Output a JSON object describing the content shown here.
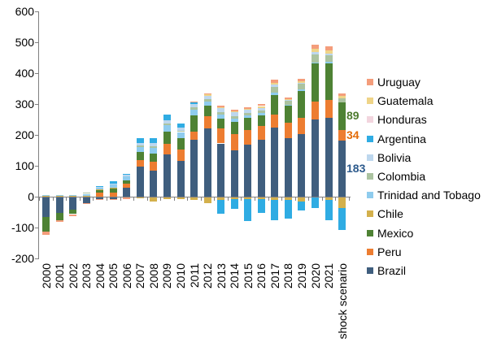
{
  "chart_data": {
    "type": "bar",
    "stacked": true,
    "title": "",
    "xlabel": "",
    "ylabel": "",
    "grid": false,
    "legend_position": "right",
    "ylim": [
      -200,
      600
    ],
    "yticks": [
      600,
      500,
      400,
      300,
      200,
      100,
      0,
      -100,
      -200
    ],
    "categories": [
      "2000",
      "2001",
      "2002",
      "2003",
      "2004",
      "2005",
      "2006",
      "2007",
      "2008",
      "2009",
      "2010",
      "2011",
      "2012",
      "2013",
      "2014",
      "2015",
      "2016",
      "2017",
      "2018",
      "2019",
      "2020",
      "2021",
      "shock scenario"
    ],
    "series": [
      {
        "name": "Brazil",
        "color": "#3F5E7E",
        "values": [
          -63,
          -50,
          -40,
          -18,
          -6,
          -5,
          30,
          97,
          85,
          137,
          115,
          185,
          220,
          172,
          150,
          168,
          185,
          224,
          189,
          203,
          251,
          255,
          183
        ]
      },
      {
        "name": "Peru",
        "color": "#ED7D31",
        "values": [
          0,
          0,
          0,
          0,
          13,
          15,
          12,
          22,
          28,
          35,
          37,
          26,
          40,
          48,
          53,
          48,
          44,
          44,
          50,
          52,
          57,
          57,
          34
        ]
      },
      {
        "name": "Mexico",
        "color": "#4E8234",
        "values": [
          -47,
          -24,
          -14,
          0,
          9,
          12,
          10,
          25,
          27,
          39,
          39,
          53,
          35,
          35,
          39,
          39,
          35,
          62,
          55,
          88,
          123,
          119,
          89
        ]
      },
      {
        "name": "Chile",
        "color": "#D3B04C",
        "values": [
          3,
          3,
          3,
          4,
          2,
          3,
          3,
          -3,
          -13,
          -4,
          -5,
          -8,
          -18,
          -8,
          -6,
          -6,
          -5,
          -8,
          -8,
          -14,
          0,
          -8,
          -34
        ]
      },
      {
        "name": "Trinidad and Tobago",
        "color": "#8FCCEE",
        "values": [
          3,
          3,
          3,
          5,
          6,
          10,
          12,
          18,
          18,
          20,
          18,
          18,
          15,
          12,
          12,
          10,
          8,
          8,
          5,
          5,
          5,
          5,
          0
        ]
      },
      {
        "name": "Colombia",
        "color": "#ABC3A0",
        "pattern": "dotted",
        "values": [
          0,
          0,
          0,
          3,
          0,
          0,
          0,
          5,
          5,
          6,
          6,
          7,
          7,
          7,
          7,
          7,
          7,
          18,
          12,
          18,
          25,
          22,
          12
        ]
      },
      {
        "name": "Bolivia",
        "color": "#BDD7EE",
        "values": [
          0,
          0,
          0,
          0,
          1,
          2,
          4,
          8,
          10,
          10,
          10,
          10,
          10,
          12,
          12,
          10,
          8,
          8,
          4,
          5,
          8,
          6,
          0
        ]
      },
      {
        "name": "Argentina",
        "color": "#2FACE3",
        "values": [
          0,
          0,
          0,
          0,
          2,
          7,
          3,
          15,
          17,
          18,
          13,
          6,
          0,
          -45,
          -32,
          -70,
          -44,
          -65,
          -60,
          -28,
          -35,
          -66,
          -70
        ]
      },
      {
        "name": "Honduras",
        "color": "#F2D5DE",
        "values": [
          0,
          0,
          0,
          0,
          0,
          0,
          0,
          0,
          0,
          0,
          0,
          0,
          0,
          0,
          0,
          0,
          0,
          0,
          0,
          0,
          0,
          0,
          0
        ]
      },
      {
        "name": "Guatemala",
        "color": "#EFD488",
        "values": [
          0,
          0,
          0,
          0,
          0,
          0,
          0,
          0,
          0,
          0,
          0,
          0,
          4,
          5,
          5,
          4,
          6,
          4,
          2,
          4,
          10,
          10,
          8
        ]
      },
      {
        "name": "Uruguay",
        "color": "#F49D7B",
        "values": [
          -10,
          -5,
          -4,
          -3,
          -2,
          -2,
          -4,
          0,
          0,
          0,
          0,
          3,
          3,
          4,
          4,
          4,
          6,
          10,
          4,
          7,
          13,
          14,
          8
        ]
      }
    ],
    "legend_order": [
      "Uruguay",
      "Guatemala",
      "Honduras",
      "Argentina",
      "Bolivia",
      "Colombia",
      "Trinidad and Tobago",
      "Chile",
      "Mexico",
      "Peru",
      "Brazil"
    ],
    "annotations": [
      {
        "text": "89",
        "series": "Mexico",
        "color": "#4E7B2F"
      },
      {
        "text": "34",
        "series": "Peru",
        "color": "#E36C09"
      },
      {
        "text": "183",
        "series": "Brazil",
        "color": "#2C5A8C"
      }
    ]
  }
}
